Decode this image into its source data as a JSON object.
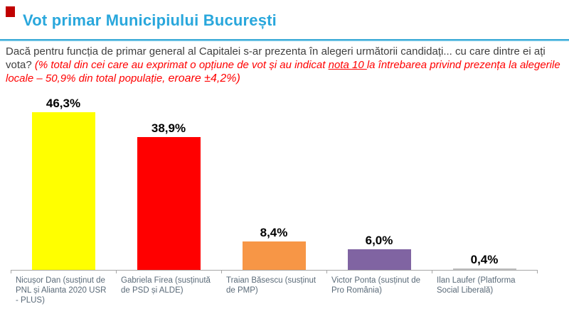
{
  "header": {
    "marker_color": "#C00000",
    "title": "Vot primar Municipiului București",
    "accent_color": "#29A7DC"
  },
  "intro": {
    "line1": "Dacă pentru funcția de primar general al Capitalei s-ar prezenta în alegeri următorii candidați... cu care",
    "line2_gray": "dintre ei ați vota?",
    "line2_red_pre": "(% total  din cei care au exprimat o opțiune de vot și au indicat",
    "line2_red_underlined": "nota 10",
    "line2_red_post": "la întrebarea privind prezența la",
    "line3_red": "alegerile locale  – 50,9% din total populație,",
    "line3_red_emphasis": "eroare ±4,2%)"
  },
  "chart_data": {
    "type": "bar",
    "title": "",
    "categories": [
      "Nicușor Dan (susținut de PNL și Alianta 2020 USR - PLUS)",
      "Gabriela Firea (susținută de PSD și ALDE)",
      "Traian Băsescu (susținut de PMP)",
      "Victor Ponta (susținut de Pro România)",
      "Ilan Laufer (Platforma Social Liberală)"
    ],
    "values": [
      46.3,
      38.9,
      8.4,
      6.0,
      0.4
    ],
    "value_labels": [
      "46,3%",
      "38,9%",
      "8,4%",
      "6,0%",
      "0,4%"
    ],
    "bar_colors": [
      "#FFFF00",
      "#FF0000",
      "#F79646",
      "#8064A2",
      "#D9D9D9"
    ],
    "bar_borders": [
      "",
      "",
      "",
      "",
      "#BFBFBF"
    ],
    "xlabel": "",
    "ylabel": "",
    "ylim": [
      0,
      50
    ],
    "grid": false,
    "legend": false,
    "axis_color": "#A6A6A6",
    "category_label_color": "#5A6A78",
    "value_label_color": "#000000"
  }
}
